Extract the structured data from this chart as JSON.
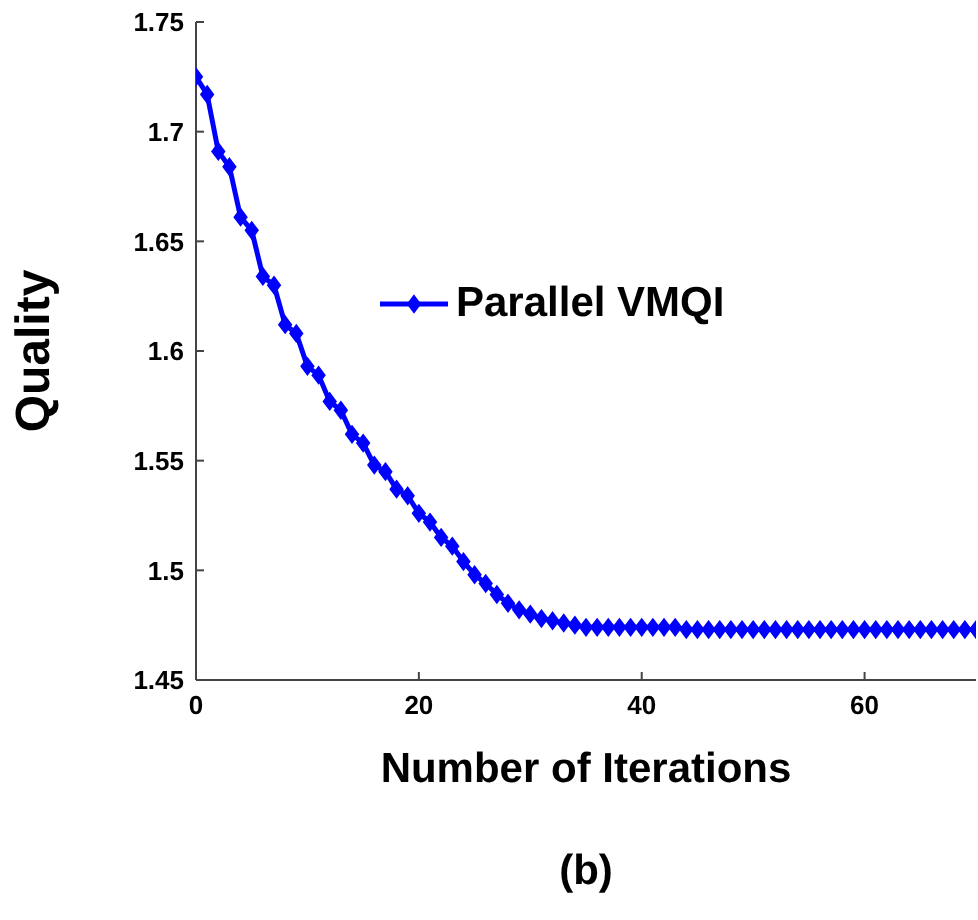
{
  "chart_data": {
    "type": "line",
    "xlabel": "Number of Iterations",
    "ylabel": "Quality",
    "annotations": [
      "(b)"
    ],
    "x": [
      0,
      1,
      2,
      3,
      4,
      5,
      6,
      7,
      8,
      9,
      10,
      11,
      12,
      13,
      14,
      15,
      16,
      17,
      18,
      19,
      20,
      21,
      22,
      23,
      24,
      25,
      26,
      27,
      28,
      29,
      30,
      31,
      32,
      33,
      34,
      35,
      36,
      37,
      38,
      39,
      40,
      41,
      42,
      43,
      44,
      45,
      46,
      47,
      48,
      49,
      50,
      51,
      52,
      53,
      54,
      55,
      56,
      57,
      58,
      59,
      60,
      61,
      62,
      63,
      64,
      65,
      66,
      67,
      68,
      69,
      70
    ],
    "series": [
      {
        "name": "Parallel VMQI",
        "color": "#0000ff",
        "values": [
          1.725,
          1.717,
          1.691,
          1.684,
          1.661,
          1.655,
          1.634,
          1.63,
          1.612,
          1.608,
          1.593,
          1.589,
          1.577,
          1.573,
          1.562,
          1.558,
          1.548,
          1.545,
          1.537,
          1.534,
          1.526,
          1.522,
          1.515,
          1.511,
          1.504,
          1.498,
          1.494,
          1.489,
          1.485,
          1.482,
          1.48,
          1.478,
          1.477,
          1.476,
          1.475,
          1.474,
          1.474,
          1.474,
          1.474,
          1.474,
          1.474,
          1.474,
          1.474,
          1.474,
          1.473,
          1.473,
          1.473,
          1.473,
          1.473,
          1.473,
          1.473,
          1.473,
          1.473,
          1.473,
          1.473,
          1.473,
          1.473,
          1.473,
          1.473,
          1.473,
          1.473,
          1.473,
          1.473,
          1.473,
          1.473,
          1.473,
          1.473,
          1.473,
          1.473,
          1.473,
          1.473
        ]
      }
    ],
    "xlim": [
      0,
      70
    ],
    "xticks": [
      0,
      20,
      40,
      60
    ],
    "ylim": [
      1.45,
      1.75
    ],
    "yticks": [
      1.45,
      1.5,
      1.55,
      1.6,
      1.65,
      1.7,
      1.75
    ],
    "marker": "diamond",
    "line_style": "solid",
    "legend": "top right",
    "grid": false
  }
}
